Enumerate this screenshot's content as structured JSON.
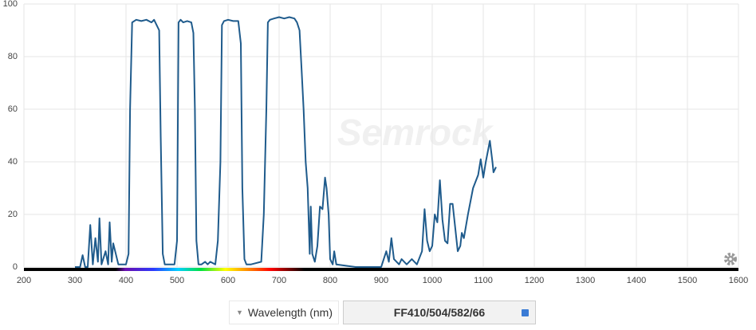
{
  "chart_data": {
    "type": "line",
    "watermark": "Semrock",
    "x_axis_control": "Wavelength (nm)",
    "filter_name": "FF410/504/582/66",
    "xlim": [
      200,
      1600
    ],
    "xticks": [
      200,
      300,
      400,
      500,
      600,
      700,
      800,
      900,
      1000,
      1100,
      1200,
      1300,
      1400,
      1500,
      1600
    ],
    "ylim": [
      0,
      100
    ],
    "yticks": [
      0,
      20,
      40,
      60,
      80,
      100
    ],
    "grid": true,
    "series": [
      {
        "color": "#1f5b8c",
        "x": [
          300,
          310,
          315,
          320,
          325,
          330,
          335,
          340,
          345,
          348,
          352,
          360,
          365,
          368,
          372,
          375,
          385,
          400,
          405,
          408,
          412,
          420,
          430,
          440,
          450,
          455,
          460,
          465,
          468,
          472,
          476,
          480,
          495,
          500,
          503,
          507,
          512,
          520,
          528,
          532,
          535,
          538,
          542,
          548,
          555,
          560,
          565,
          575,
          580,
          585,
          588,
          592,
          600,
          610,
          620,
          625,
          628,
          632,
          636,
          645,
          665,
          670,
          675,
          678,
          682,
          690,
          700,
          710,
          720,
          730,
          735,
          740,
          744,
          748,
          752,
          756,
          760,
          762,
          765,
          770,
          775,
          780,
          785,
          790,
          793,
          797,
          800,
          805,
          808,
          812,
          850,
          900,
          905,
          910,
          915,
          920,
          925,
          935,
          940,
          950,
          960,
          970,
          980,
          985,
          990,
          995,
          1000,
          1005,
          1010,
          1015,
          1020,
          1025,
          1030,
          1035,
          1040,
          1045,
          1050,
          1055,
          1058,
          1062,
          1070,
          1080,
          1090,
          1095,
          1100,
          1105,
          1110,
          1113,
          1118,
          1120,
          1125
        ],
        "values": [
          0,
          0,
          4.5,
          0,
          0,
          16,
          1,
          11,
          2,
          18.5,
          1,
          6,
          1,
          17,
          2,
          9,
          1,
          1,
          5,
          60,
          93,
          94,
          93.5,
          94,
          93,
          94,
          92,
          90,
          50,
          5,
          1,
          1,
          1,
          10,
          93,
          94,
          93,
          93.5,
          93,
          89,
          60,
          10,
          1,
          1,
          2,
          1,
          2,
          1,
          10,
          40,
          92,
          93.5,
          94,
          93.5,
          93.5,
          85,
          30,
          3,
          1,
          1,
          2,
          20,
          60,
          93,
          94,
          94.5,
          95,
          94.5,
          95,
          94.5,
          93,
          90,
          75,
          60,
          40,
          30,
          5,
          23,
          5,
          2,
          8,
          23,
          22,
          34,
          30,
          20,
          3,
          1,
          6,
          1,
          0,
          0,
          3,
          6,
          2,
          11,
          3,
          1,
          3,
          1,
          3,
          1,
          6,
          22,
          10,
          6,
          8,
          20,
          17,
          33,
          18,
          10,
          9,
          24,
          24,
          15,
          6,
          8,
          13,
          11,
          20,
          30,
          35,
          41,
          34,
          40,
          45,
          48,
          40,
          36,
          38
        ]
      }
    ]
  }
}
